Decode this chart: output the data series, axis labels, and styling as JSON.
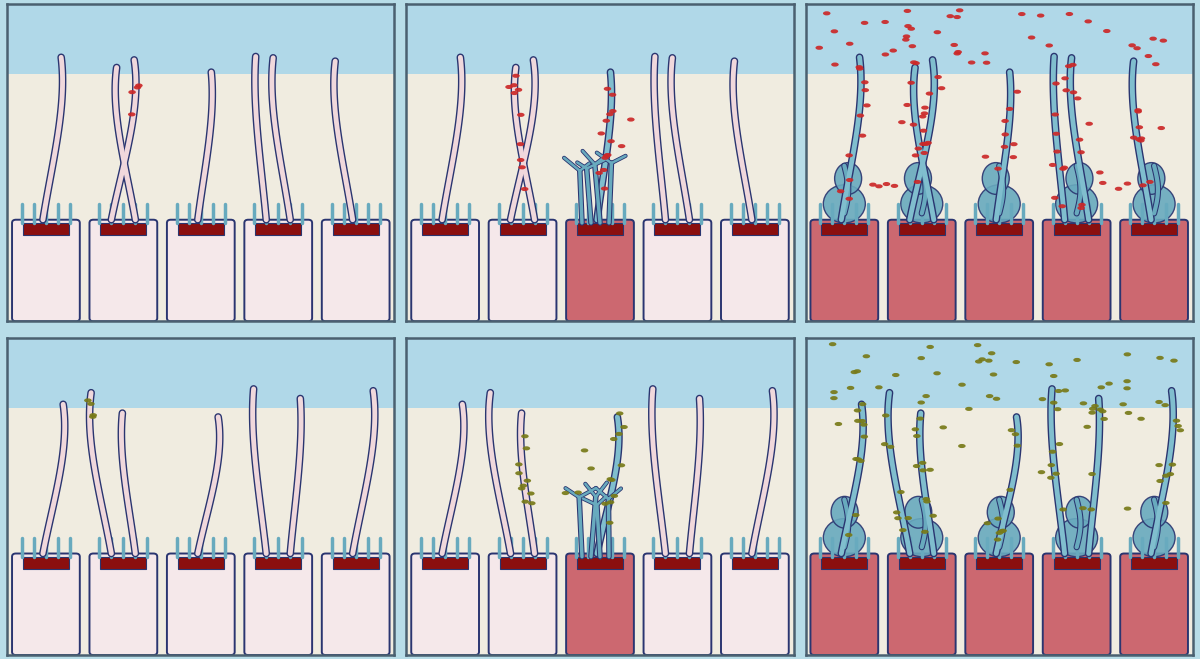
{
  "figure_bg": "#b8dde8",
  "panel_bg_mucus": "#b0d8e8",
  "panel_bg_cream": "#f0ece0",
  "cell_infected": "#cc6870",
  "cell_normal": "#f5e8ea",
  "cell_top_dark": "#8b0f0f",
  "outline_color": "#2a3570",
  "cilia_inner_normal": "#f0d8dc",
  "cilia_inner_infected": "#80bece",
  "microvilli_color": "#68aabe",
  "virus_red": "#cc2828",
  "virus_olive": "#787a18",
  "panel_border": "#4a6070"
}
